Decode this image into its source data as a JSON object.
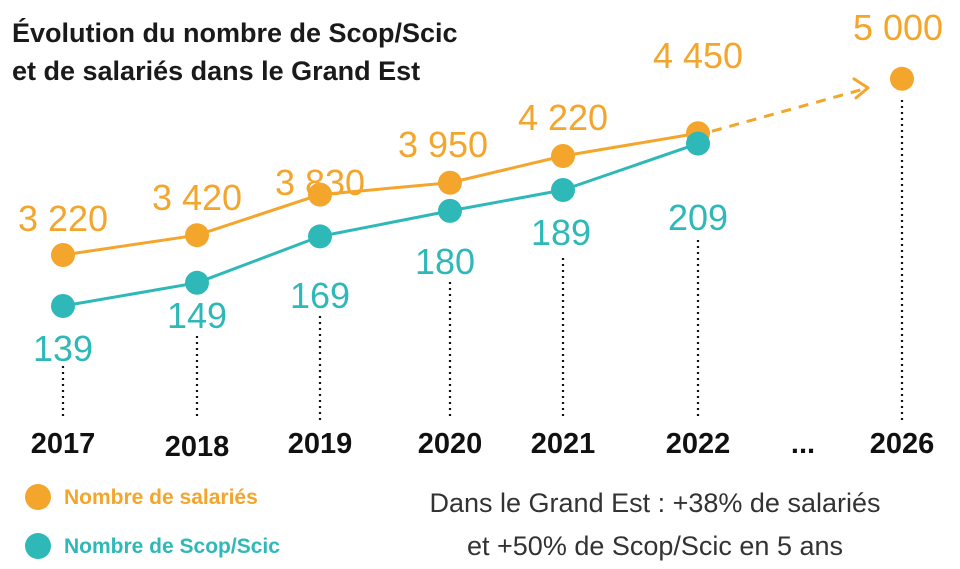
{
  "chart_data": {
    "type": "line",
    "title_line1": "Évolution du nombre de Scop/Scic",
    "title_line2": "et de salariés dans le Grand Est",
    "categories": [
      "2017",
      "2018",
      "2019",
      "2020",
      "2021",
      "2022",
      "...",
      "2026"
    ],
    "series": [
      {
        "name": "Nombre de salariés",
        "color": "#f3a52c",
        "values": [
          3220,
          3420,
          3830,
          3950,
          4220,
          4450,
          null,
          5000
        ],
        "labels": [
          "3 220",
          "3 420",
          "3 830",
          "3 950",
          "4 220",
          "4 450",
          "",
          "5 000"
        ],
        "projection": "2026"
      },
      {
        "name": "Nombre de Scop/Scic",
        "color": "#2fb8b8",
        "values": [
          139,
          149,
          169,
          180,
          189,
          209,
          null,
          null
        ],
        "labels": [
          "139",
          "149",
          "169",
          "180",
          "189",
          "209",
          "",
          ""
        ]
      }
    ],
    "note_line1": "Dans le Grand Est : +38% de salariés",
    "note_line2": "et +50% de Scop/Scic en 5 ans"
  }
}
